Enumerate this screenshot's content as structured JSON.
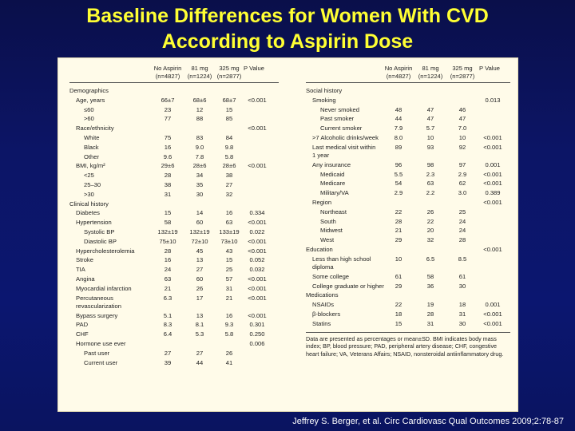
{
  "title_line1": "Baseline Differences for Women With CVD",
  "title_line2": "According to Aspirin Dose",
  "columns": {
    "no_aspirin": "No Aspirin",
    "no_aspirin_n": "(n=4827)",
    "mg81": "81 mg",
    "mg81_n": "(n=1224)",
    "mg325": "325 mg",
    "mg325_n": "(n=2877)",
    "p": "P Value"
  },
  "left_rows": [
    {
      "label": "Demographics",
      "level": 0,
      "a": "",
      "b": "",
      "c": "",
      "p": ""
    },
    {
      "label": "Age, years",
      "level": 1,
      "a": "66±7",
      "b": "68±6",
      "c": "68±7",
      "p": "<0.001"
    },
    {
      "label": "≤60",
      "level": 2,
      "a": "23",
      "b": "12",
      "c": "15",
      "p": ""
    },
    {
      "label": ">60",
      "level": 2,
      "a": "77",
      "b": "88",
      "c": "85",
      "p": ""
    },
    {
      "label": "Race/ethnicity",
      "level": 1,
      "a": "",
      "b": "",
      "c": "",
      "p": "<0.001"
    },
    {
      "label": "White",
      "level": 2,
      "a": "75",
      "b": "83",
      "c": "84",
      "p": ""
    },
    {
      "label": "Black",
      "level": 2,
      "a": "16",
      "b": "9.0",
      "c": "9.8",
      "p": ""
    },
    {
      "label": "Other",
      "level": 2,
      "a": "9.6",
      "b": "7.8",
      "c": "5.8",
      "p": ""
    },
    {
      "label": "BMI, kg/m²",
      "level": 1,
      "a": "29±6",
      "b": "28±6",
      "c": "28±6",
      "p": "<0.001"
    },
    {
      "label": "<25",
      "level": 2,
      "a": "28",
      "b": "34",
      "c": "38",
      "p": ""
    },
    {
      "label": "25–30",
      "level": 2,
      "a": "38",
      "b": "35",
      "c": "27",
      "p": ""
    },
    {
      "label": ">30",
      "level": 2,
      "a": "31",
      "b": "30",
      "c": "32",
      "p": ""
    },
    {
      "label": "Clinical history",
      "level": 0,
      "a": "",
      "b": "",
      "c": "",
      "p": ""
    },
    {
      "label": "Diabetes",
      "level": 1,
      "a": "15",
      "b": "14",
      "c": "16",
      "p": "0.334"
    },
    {
      "label": "Hypertension",
      "level": 1,
      "a": "58",
      "b": "60",
      "c": "63",
      "p": "<0.001"
    },
    {
      "label": "Systolic BP",
      "level": 2,
      "a": "132±19",
      "b": "132±19",
      "c": "133±19",
      "p": "0.022"
    },
    {
      "label": "Diastolic BP",
      "level": 2,
      "a": "75±10",
      "b": "72±10",
      "c": "73±10",
      "p": "<0.001"
    },
    {
      "label": "Hypercholesterolemia",
      "level": 1,
      "a": "28",
      "b": "45",
      "c": "43",
      "p": "<0.001"
    },
    {
      "label": "Stroke",
      "level": 1,
      "a": "16",
      "b": "13",
      "c": "15",
      "p": "0.052"
    },
    {
      "label": "TIA",
      "level": 1,
      "a": "24",
      "b": "27",
      "c": "25",
      "p": "0.032"
    },
    {
      "label": "Angina",
      "level": 1,
      "a": "63",
      "b": "60",
      "c": "57",
      "p": "<0.001"
    },
    {
      "label": "Myocardial infarction",
      "level": 1,
      "a": "21",
      "b": "26",
      "c": "31",
      "p": "<0.001"
    },
    {
      "label": "Percutaneous revascularization",
      "level": 1,
      "tall": true,
      "a": "6.3",
      "b": "17",
      "c": "21",
      "p": "<0.001"
    },
    {
      "label": "Bypass surgery",
      "level": 1,
      "a": "5.1",
      "b": "13",
      "c": "16",
      "p": "<0.001"
    },
    {
      "label": "PAD",
      "level": 1,
      "a": "8.3",
      "b": "8.1",
      "c": "9.3",
      "p": "0.301"
    },
    {
      "label": "CHF",
      "level": 1,
      "a": "6.4",
      "b": "5.3",
      "c": "5.8",
      "p": "0.250"
    },
    {
      "label": "Hormone use ever",
      "level": 1,
      "a": "",
      "b": "",
      "c": "",
      "p": "0.006"
    },
    {
      "label": "Past user",
      "level": 2,
      "a": "27",
      "b": "27",
      "c": "26",
      "p": ""
    },
    {
      "label": "Current user",
      "level": 2,
      "a": "39",
      "b": "44",
      "c": "41",
      "p": ""
    }
  ],
  "right_rows": [
    {
      "label": "Social history",
      "level": 0,
      "a": "",
      "b": "",
      "c": "",
      "p": ""
    },
    {
      "label": "Smoking",
      "level": 1,
      "a": "",
      "b": "",
      "c": "",
      "p": "0.013"
    },
    {
      "label": "Never smoked",
      "level": 2,
      "a": "48",
      "b": "47",
      "c": "46",
      "p": ""
    },
    {
      "label": "Past smoker",
      "level": 2,
      "a": "44",
      "b": "47",
      "c": "47",
      "p": ""
    },
    {
      "label": "Current smoker",
      "level": 2,
      "a": "7.9",
      "b": "5.7",
      "c": "7.0",
      "p": ""
    },
    {
      "label": ">7 Alcoholic drinks/week",
      "level": 1,
      "a": "8.0",
      "b": "10",
      "c": "10",
      "p": "<0.001"
    },
    {
      "label": "Last medical visit within 1 year",
      "level": 1,
      "tall": true,
      "a": "89",
      "b": "93",
      "c": "92",
      "p": "<0.001"
    },
    {
      "label": "Any insurance",
      "level": 1,
      "a": "96",
      "b": "98",
      "c": "97",
      "p": "0.001"
    },
    {
      "label": "Medicaid",
      "level": 2,
      "a": "5.5",
      "b": "2.3",
      "c": "2.9",
      "p": "<0.001"
    },
    {
      "label": "Medicare",
      "level": 2,
      "a": "54",
      "b": "63",
      "c": "62",
      "p": "<0.001"
    },
    {
      "label": "Military/VA",
      "level": 2,
      "a": "2.9",
      "b": "2.2",
      "c": "3.0",
      "p": "0.389"
    },
    {
      "label": "Region",
      "level": 1,
      "a": "",
      "b": "",
      "c": "",
      "p": "<0.001"
    },
    {
      "label": "Northeast",
      "level": 2,
      "a": "22",
      "b": "26",
      "c": "25",
      "p": ""
    },
    {
      "label": "South",
      "level": 2,
      "a": "28",
      "b": "22",
      "c": "24",
      "p": ""
    },
    {
      "label": "Midwest",
      "level": 2,
      "a": "21",
      "b": "20",
      "c": "24",
      "p": ""
    },
    {
      "label": "West",
      "level": 2,
      "a": "29",
      "b": "32",
      "c": "28",
      "p": ""
    },
    {
      "label": "Education",
      "level": 0,
      "a": "",
      "b": "",
      "c": "",
      "p": "<0.001"
    },
    {
      "label": "Less than high school diploma",
      "level": 1,
      "tall": true,
      "a": "10",
      "b": "6.5",
      "c": "8.5",
      "p": ""
    },
    {
      "label": "Some college",
      "level": 1,
      "a": "61",
      "b": "58",
      "c": "61",
      "p": ""
    },
    {
      "label": "College graduate or higher",
      "level": 1,
      "a": "29",
      "b": "36",
      "c": "30",
      "p": ""
    },
    {
      "label": "Medications",
      "level": 0,
      "a": "",
      "b": "",
      "c": "",
      "p": ""
    },
    {
      "label": "NSAIDs",
      "level": 1,
      "a": "22",
      "b": "19",
      "c": "18",
      "p": "0.001"
    },
    {
      "label": "β-blockers",
      "level": 1,
      "a": "18",
      "b": "28",
      "c": "31",
      "p": "<0.001"
    },
    {
      "label": "Statins",
      "level": 1,
      "a": "15",
      "b": "31",
      "c": "30",
      "p": "<0.001"
    }
  ],
  "footnote": "Data are presented as percentages or mean±SD. BMI indicates body mass index; BP, blood pressure; PAD, peripheral artery disease; CHF, congestive heart failure; VA, Veterans Affairs; NSAID, nonsteroidal antiinflammatory drug.",
  "citation": "Jeffrey S. Berger, et al. Circ Cardiovasc Qual Outcomes 2009;2:78-87"
}
